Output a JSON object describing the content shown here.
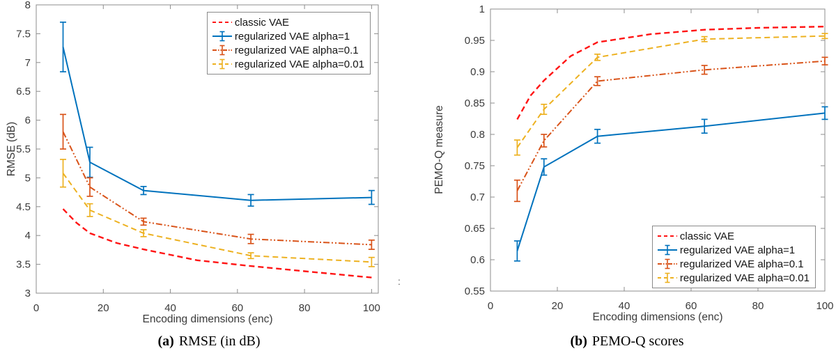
{
  "page": {
    "background": "#ffffff"
  },
  "colors": {
    "classic_red": "#ff1414",
    "matlab_blue": "#0072bd",
    "matlab_orange": "#d95319",
    "matlab_yellow": "#edb120",
    "axis_box": "#8c8c8c",
    "tick_text": "#3a3a3a"
  },
  "chart_data": [
    {
      "type": "line",
      "caption": {
        "label": "(a)",
        "text": "RMSE (in dB)"
      },
      "xlabel": "Encoding dimensions (enc)",
      "ylabel": "RMSE (dB)",
      "xlim": [
        0,
        102
      ],
      "ylim": [
        3,
        8
      ],
      "xticks": [
        0,
        20,
        40,
        60,
        80,
        100
      ],
      "xtick_labels": [
        "0",
        "20",
        "40",
        "60",
        "80",
        "100"
      ],
      "yticks": [
        3,
        3.5,
        4,
        4.5,
        5,
        5.5,
        6,
        6.5,
        7,
        7.5,
        8
      ],
      "ytick_labels": [
        "3",
        "3.5",
        "4",
        "4.5",
        "5",
        "5.5",
        "6",
        "6.5",
        "7",
        "7.5",
        "8"
      ],
      "grid": false,
      "legend_position": "northeast",
      "crop_artifact": ":",
      "series": [
        {
          "name": "classic VAE",
          "color": "#ff1414",
          "style": "dashed",
          "error_bars": false,
          "x": [
            8,
            12,
            16,
            24,
            32,
            48,
            64,
            80,
            100
          ],
          "y": [
            4.46,
            4.22,
            4.04,
            3.87,
            3.76,
            3.57,
            3.47,
            3.38,
            3.27
          ]
        },
        {
          "name": "regularized VAE alpha=1",
          "color": "#0072bd",
          "style": "solid",
          "error_bars": true,
          "x": [
            8,
            16,
            32,
            64,
            100
          ],
          "y": [
            7.27,
            5.27,
            4.78,
            4.61,
            4.66
          ],
          "yerr": [
            0.43,
            0.26,
            0.07,
            0.1,
            0.12
          ]
        },
        {
          "name": "regularized VAE alpha=0.1",
          "color": "#d95319",
          "style": "dashdotdot",
          "error_bars": true,
          "x": [
            8,
            16,
            32,
            64,
            100
          ],
          "y": [
            5.8,
            4.84,
            4.24,
            3.94,
            3.84
          ],
          "yerr": [
            0.3,
            0.16,
            0.06,
            0.08,
            0.08
          ]
        },
        {
          "name": "regularized VAE alpha=0.01",
          "color": "#edb120",
          "style": "dashed",
          "error_bars": true,
          "x": [
            8,
            16,
            32,
            64,
            100
          ],
          "y": [
            5.08,
            4.44,
            4.04,
            3.65,
            3.54
          ],
          "yerr": [
            0.24,
            0.11,
            0.06,
            0.05,
            0.08
          ]
        }
      ]
    },
    {
      "type": "line",
      "caption": {
        "label": "(b)",
        "text": "PEMO-Q scores"
      },
      "xlabel": "Encoding dimensions (enc)",
      "ylabel": "PEMO-Q measure",
      "xlim": [
        0,
        100
      ],
      "ylim": [
        0.55,
        1.0
      ],
      "xticks": [
        0,
        20,
        40,
        60,
        80,
        100
      ],
      "xtick_labels": [
        "0",
        "20",
        "40",
        "60",
        "80",
        "100"
      ],
      "yticks": [
        0.55,
        0.6,
        0.65,
        0.7,
        0.75,
        0.8,
        0.85,
        0.9,
        0.95,
        1
      ],
      "ytick_labels": [
        "0.55",
        "0.6",
        "0.65",
        "0.7",
        "0.75",
        "0.8",
        "0.85",
        "0.9",
        "0.95",
        "1"
      ],
      "grid": false,
      "legend_position": "southeast",
      "series": [
        {
          "name": "classic VAE",
          "color": "#ff1414",
          "style": "dashed",
          "error_bars": false,
          "x": [
            8,
            12,
            16,
            24,
            32,
            48,
            64,
            80,
            100
          ],
          "y": [
            0.824,
            0.862,
            0.886,
            0.925,
            0.947,
            0.96,
            0.967,
            0.97,
            0.972
          ]
        },
        {
          "name": "regularized VAE alpha=1",
          "color": "#0072bd",
          "style": "solid",
          "error_bars": true,
          "x": [
            8,
            16,
            32,
            64,
            100
          ],
          "y": [
            0.614,
            0.748,
            0.797,
            0.813,
            0.834
          ],
          "yerr": [
            0.016,
            0.013,
            0.011,
            0.011,
            0.01
          ]
        },
        {
          "name": "regularized VAE alpha=0.1",
          "color": "#d95319",
          "style": "dashdotdot",
          "error_bars": true,
          "x": [
            8,
            16,
            32,
            64,
            100
          ],
          "y": [
            0.71,
            0.79,
            0.885,
            0.903,
            0.917
          ],
          "yerr": [
            0.017,
            0.01,
            0.007,
            0.007,
            0.006
          ]
        },
        {
          "name": "regularized VAE alpha=0.01",
          "color": "#edb120",
          "style": "dashed",
          "error_bars": true,
          "x": [
            8,
            16,
            32,
            64,
            100
          ],
          "y": [
            0.779,
            0.84,
            0.923,
            0.952,
            0.957
          ],
          "yerr": [
            0.012,
            0.008,
            0.005,
            0.004,
            0.004
          ]
        }
      ]
    }
  ]
}
